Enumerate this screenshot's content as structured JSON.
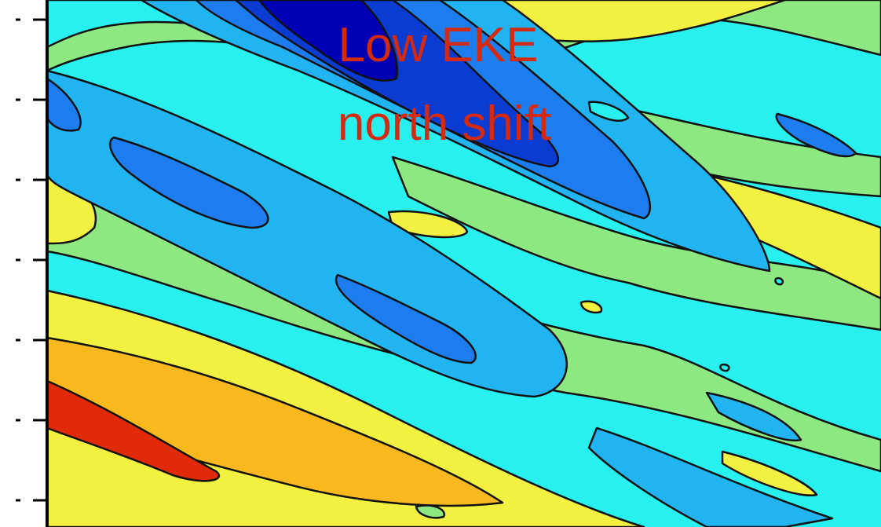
{
  "chart_data": {
    "type": "heatmap",
    "title": "",
    "xlabel": "",
    "ylabel": "",
    "colormap": [
      "#0000b4",
      "#0a3cd2",
      "#1e7dee",
      "#22b4f0",
      "#28f0ee",
      "#8ee882",
      "#f2f040",
      "#f8b81e",
      "#f56410",
      "#e02a08"
    ],
    "contour_color": "#111111",
    "y_ticks_count": 7,
    "y_tick_labels_shown": false,
    "annotations": [
      {
        "text": "Low EKE",
        "color": "#d42a12"
      },
      {
        "text": "north shift",
        "color": "#d42a12"
      }
    ]
  }
}
